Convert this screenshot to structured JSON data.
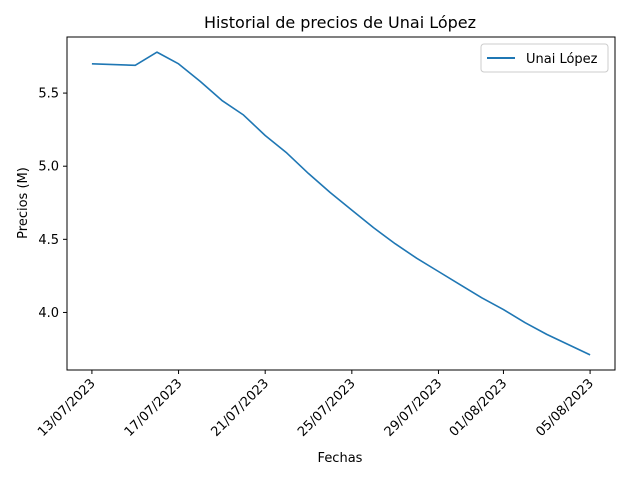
{
  "chart_data": {
    "type": "line",
    "title": "Historial de precios de Unai López",
    "xlabel": "Fechas",
    "ylabel": "Precios (M)",
    "x_ticks": [
      "13/07/2023",
      "17/07/2023",
      "21/07/2023",
      "25/07/2023",
      "29/07/2023",
      "01/08/2023",
      "05/08/2023"
    ],
    "y_ticks": [
      "4.0",
      "4.5",
      "5.0",
      "5.5"
    ],
    "legend_position": "top-right",
    "grid": false,
    "series": [
      {
        "name": "Unai López",
        "color": "#1f77b4",
        "points": [
          {
            "x": "2023-07-13",
            "y": 5.7
          },
          {
            "x": "2023-07-15",
            "y": 5.69
          },
          {
            "x": "2023-07-16",
            "y": 5.78
          },
          {
            "x": "2023-07-17",
            "y": 5.7
          },
          {
            "x": "2023-07-18",
            "y": 5.58
          },
          {
            "x": "2023-07-19",
            "y": 5.45
          },
          {
            "x": "2023-07-20",
            "y": 5.35
          },
          {
            "x": "2023-07-21",
            "y": 5.21
          },
          {
            "x": "2023-07-22",
            "y": 5.09
          },
          {
            "x": "2023-07-23",
            "y": 4.95
          },
          {
            "x": "2023-07-24",
            "y": 4.82
          },
          {
            "x": "2023-07-25",
            "y": 4.7
          },
          {
            "x": "2023-07-26",
            "y": 4.58
          },
          {
            "x": "2023-07-27",
            "y": 4.47
          },
          {
            "x": "2023-07-28",
            "y": 4.37
          },
          {
            "x": "2023-07-29",
            "y": 4.28
          },
          {
            "x": "2023-07-30",
            "y": 4.19
          },
          {
            "x": "2023-07-31",
            "y": 4.1
          },
          {
            "x": "2023-08-01",
            "y": 4.02
          },
          {
            "x": "2023-08-02",
            "y": 3.93
          },
          {
            "x": "2023-08-03",
            "y": 3.85
          },
          {
            "x": "2023-08-04",
            "y": 3.78
          },
          {
            "x": "2023-08-05",
            "y": 3.71
          }
        ]
      }
    ]
  }
}
